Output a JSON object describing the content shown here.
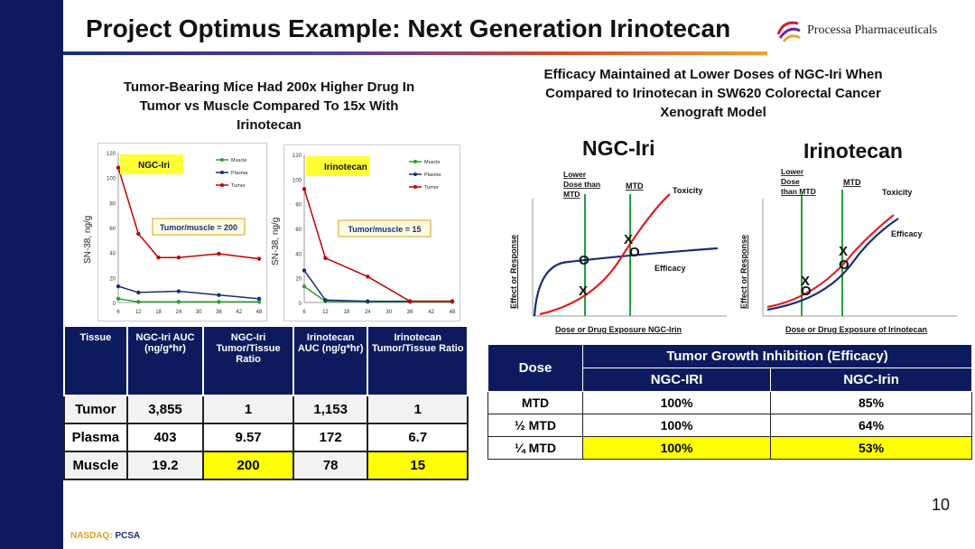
{
  "title": "Project Optimus Example: Next Generation Irinotecan",
  "logo": {
    "name": "Processa Pharmaceuticals",
    "icon": "processa-swirl-icon"
  },
  "left_heading": "Tumor-Bearing Mice Had 200x Higher Drug In Tumor vs Muscle Compared To 15x With Irinotecan",
  "right_heading": "Efficacy Maintained at Lower Doses of NGC-Iri When Compared to Irinotecan in SW620 Colorectal Cancer Xenograft Model",
  "pk_charts": {
    "y_label": "SN-38, ng/g",
    "legend": [
      "Muscle",
      "Plasma",
      "Tumor"
    ],
    "colors": {
      "muscle": "#2ca02c",
      "plasma": "#1a2c7a",
      "tumor": "#c00000"
    },
    "ngc": {
      "tag": "NGC-Iri",
      "ratio_label": "Tumor/muscle = 200"
    },
    "iri": {
      "tag": "Irinotecan",
      "ratio_label": "Tumor/muscle = 15"
    }
  },
  "chart_data": [
    {
      "type": "line",
      "title": "NGC-Iri",
      "ylabel": "SN-38, ng/g",
      "x": [
        6,
        12,
        24,
        36,
        48
      ],
      "x_ticks": [
        6,
        12,
        18,
        24,
        30,
        36,
        42,
        48
      ],
      "y_ticks": [
        0,
        20,
        40,
        60,
        80,
        100,
        120
      ],
      "ylim": [
        0,
        120
      ],
      "series": [
        {
          "name": "Muscle",
          "values": [
            3,
            0.5,
            0.5,
            0.5,
            0.5
          ]
        },
        {
          "name": "Plasma",
          "values": [
            13,
            8,
            9,
            6,
            3
          ]
        },
        {
          "name": "Tumor",
          "values": [
            108,
            55,
            36,
            39,
            35
          ]
        }
      ],
      "tumor_point_extra": {
        "x": 18,
        "y": 36
      }
    },
    {
      "type": "line",
      "title": "Irinotecan",
      "ylabel": "SN-38, ng/g",
      "x": [
        6,
        12,
        24,
        36,
        48
      ],
      "x_ticks": [
        6,
        12,
        18,
        24,
        30,
        36,
        42,
        48
      ],
      "y_ticks": [
        0,
        20,
        40,
        60,
        80,
        100,
        120
      ],
      "ylim": [
        0,
        120
      ],
      "series": [
        {
          "name": "Muscle",
          "values": [
            13,
            1,
            0.5,
            0.5,
            0.5
          ]
        },
        {
          "name": "Plasma",
          "values": [
            26,
            2,
            1,
            1,
            1
          ]
        },
        {
          "name": "Tumor",
          "values": [
            92,
            36,
            21,
            1,
            1
          ]
        }
      ]
    }
  ],
  "effect_charts": {
    "ngc": {
      "title": "NGC-Iri",
      "lower_label": "Lower\nDose than\nMTD",
      "mtd_label": "MTD",
      "toxicity_label": "Toxicity",
      "efficacy_label": "Efficacy",
      "xlabel": "Dose or Drug Exposure NGC-Irin",
      "ylabel": "Effect or Response"
    },
    "iri": {
      "title": "Irinotecan",
      "lower_label": "Lower\nDose\nthan MTD",
      "mtd_label": "MTD",
      "toxicity_label": "Toxicity",
      "efficacy_label": "Efficacy",
      "xlabel": "Dose or Drug Exposure of Irinotecan",
      "ylabel": "Effect or Response"
    },
    "markers": {
      "x": "X",
      "o": "O"
    }
  },
  "pk_table": {
    "headers": [
      "Tissue",
      "NGC-Iri AUC (ng/g*hr)",
      "NGC-Iri Tumor/Tissue Ratio",
      "Irinotecan AUC (ng/g*hr)",
      "Irinotecan Tumor/Tissue Ratio"
    ],
    "rows": [
      [
        "Tumor",
        "3,855",
        "1",
        "1,153",
        "1"
      ],
      [
        "Plasma",
        "403",
        "9.57",
        "172",
        "6.7"
      ],
      [
        "Muscle",
        "19.2",
        "200",
        "78",
        "15"
      ]
    ]
  },
  "efficacy_table": {
    "header_dose": "Dose",
    "header_group": "Tumor Growth Inhibition (Efficacy)",
    "col1": "NGC-IRI",
    "col2": "NGC-Irin",
    "rows": [
      [
        "MTD",
        "100%",
        "85%"
      ],
      [
        "½ MTD",
        "100%",
        "64%"
      ],
      [
        "¼ MTD",
        "100%",
        "53%"
      ]
    ]
  },
  "page_number": "10",
  "footer": {
    "exchange": "NASDAQ:",
    "ticker": "PCSA"
  }
}
